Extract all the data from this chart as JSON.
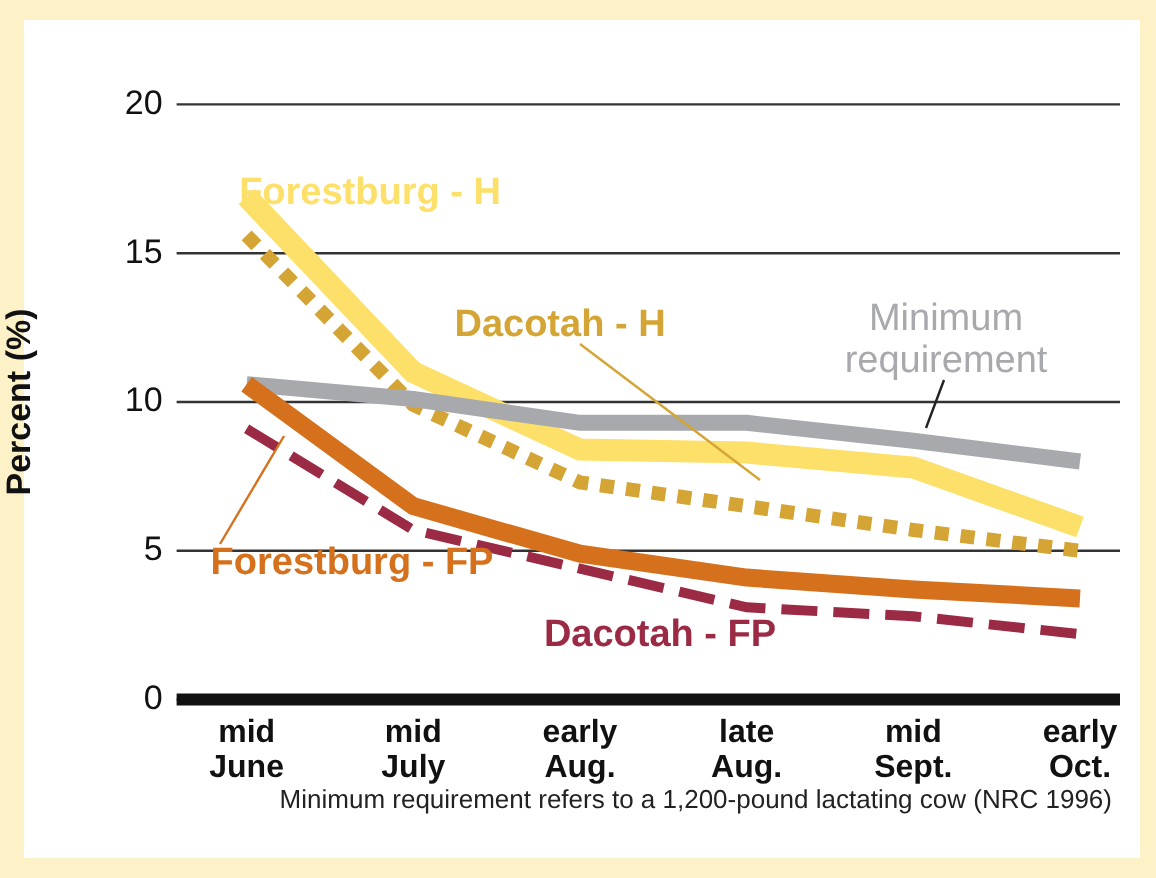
{
  "chart_data": {
    "type": "line",
    "ylabel": "Percent (%)",
    "categories": [
      "mid June",
      "mid July",
      "early Aug.",
      "late Aug.",
      "mid Sept.",
      "early Oct."
    ],
    "series": [
      {
        "name": "Forestburg - H",
        "color": "#fde06a",
        "line_style": "solid",
        "values": [
          16.9,
          11.0,
          8.4,
          8.3,
          7.8,
          5.8
        ]
      },
      {
        "name": "Dacotah - H",
        "color": "#d4a535",
        "line_style": "dotted",
        "values": [
          15.6,
          9.9,
          7.3,
          6.5,
          5.7,
          5.0
        ]
      },
      {
        "name": "Minimum requirement",
        "color": "#a8a9ad",
        "line_style": "solid",
        "values": [
          10.6,
          10.1,
          9.3,
          9.3,
          8.7,
          8.0
        ]
      },
      {
        "name": "Forestburg - FP",
        "color": "#d5711d",
        "line_style": "solid",
        "values": [
          10.6,
          6.5,
          4.9,
          4.1,
          3.7,
          3.4
        ]
      },
      {
        "name": "Dacotah - FP",
        "color": "#9b2a45",
        "line_style": "dashed",
        "values": [
          9.1,
          5.7,
          4.4,
          3.1,
          2.8,
          2.2
        ]
      }
    ],
    "ylim": [
      0,
      20
    ],
    "yticks": [
      0,
      5,
      10,
      15,
      20
    ],
    "grid": "y",
    "legend": false,
    "marker": "none",
    "annotations": [
      "Minimum requirement refers to a 1,200-pound lactating cow (NRC 1996)"
    ]
  }
}
